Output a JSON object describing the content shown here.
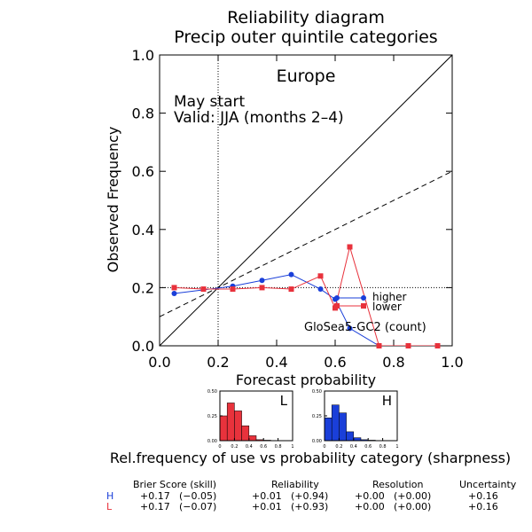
{
  "chart_data": {
    "type": "line",
    "title": "Reliability diagram",
    "subtitle": "Precip outer quintile categories",
    "region": "Europe",
    "annotation_lines": [
      "May start",
      "Valid: JJA (months 2–4)"
    ],
    "xlabel": "Forecast probability",
    "ylabel": "Observed Frequency",
    "xlim": [
      0,
      1
    ],
    "ylim": [
      0,
      1
    ],
    "xticks": [
      "0.0",
      "0.2",
      "0.4",
      "0.6",
      "0.8",
      "1.0"
    ],
    "yticks": [
      "0.0",
      "0.2",
      "0.4",
      "0.6",
      "0.8",
      "1.0"
    ],
    "climatology_x": 0.2,
    "climatology_y": 0.2,
    "no_skill_line": [
      [
        0,
        0.1
      ],
      [
        1,
        0.6
      ]
    ],
    "series": [
      {
        "name": "higher",
        "color": "#1a3fd9",
        "marker": "circle",
        "points": [
          [
            0.05,
            0.18
          ],
          [
            0.25,
            0.205
          ],
          [
            0.35,
            0.225
          ],
          [
            0.45,
            0.245
          ],
          [
            0.55,
            0.195
          ],
          [
            0.6,
            0.16
          ],
          [
            0.65,
            0.06
          ],
          [
            0.75,
            0.0
          ],
          [
            0.85,
            0.0
          ]
        ]
      },
      {
        "name": "lower",
        "color": "#e8323c",
        "marker": "square",
        "points": [
          [
            0.05,
            0.2
          ],
          [
            0.15,
            0.195
          ],
          [
            0.25,
            0.195
          ],
          [
            0.35,
            0.2
          ],
          [
            0.45,
            0.195
          ],
          [
            0.55,
            0.24
          ],
          [
            0.6,
            0.13
          ],
          [
            0.65,
            0.34
          ],
          [
            0.75,
            0.0
          ],
          [
            0.85,
            0.0
          ],
          [
            0.95,
            0.0
          ]
        ]
      }
    ],
    "legend_placement": "lower-right",
    "model_label": "GloSea5-GC2 (count)",
    "sharpness_title": "Rel.frequency of use vs probability category (sharpness)",
    "sharpness": [
      {
        "label": "L",
        "color": "#e8323c",
        "yticks": [
          "0.00",
          "0.25",
          "0.50"
        ],
        "xticks": [
          "0",
          "0.2",
          "0.4",
          "0.6",
          "0.8",
          "1"
        ],
        "ylim": [
          0,
          0.5
        ],
        "bins": [
          0.05,
          0.15,
          0.25,
          0.35,
          0.45,
          0.55,
          0.65
        ],
        "values": [
          0.25,
          0.38,
          0.3,
          0.15,
          0.05,
          0.01,
          0.005
        ]
      },
      {
        "label": "H",
        "color": "#1a3fd9",
        "yticks": [
          "0.00",
          "0.25",
          "0.50"
        ],
        "xticks": [
          "0",
          "0.2",
          "0.4",
          "0.6",
          "0.8",
          "1"
        ],
        "ylim": [
          0,
          0.5
        ],
        "bins": [
          0.05,
          0.15,
          0.25,
          0.35,
          0.45,
          0.55,
          0.65
        ],
        "values": [
          0.23,
          0.36,
          0.28,
          0.09,
          0.03,
          0.01,
          0.005
        ]
      }
    ]
  },
  "scores": {
    "headers": [
      "Brier Score (skill)",
      "Reliability",
      "Resolution",
      "Uncertainty"
    ],
    "rows": [
      {
        "label": "H",
        "color": "#1a3fd9",
        "brier": "+0.17",
        "brier_skill": "(−0.05)",
        "rel": "+0.01",
        "rel_skill": "(+0.94)",
        "res": "+0.00",
        "res_skill": "(+0.00)",
        "unc": "+0.16"
      },
      {
        "label": "L",
        "color": "#e8323c",
        "brier": "+0.17",
        "brier_skill": "(−0.07)",
        "rel": "+0.01",
        "rel_skill": "(+0.93)",
        "res": "+0.00",
        "res_skill": "(+0.00)",
        "unc": "+0.16"
      }
    ]
  }
}
